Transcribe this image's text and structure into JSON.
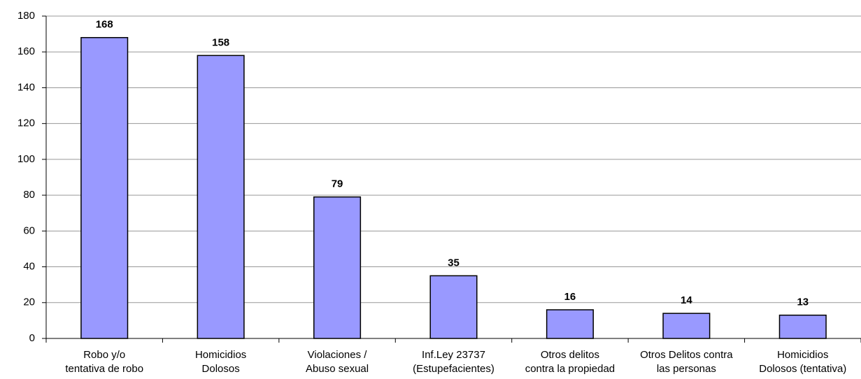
{
  "chart_data": {
    "type": "bar",
    "categories": [
      [
        "Robo y/o",
        "tentativa de robo"
      ],
      [
        "Homicidios",
        "Dolosos"
      ],
      [
        "Violaciones /",
        "Abuso sexual"
      ],
      [
        "Inf.Ley 23737",
        "(Estupefacientes)"
      ],
      [
        "Otros delitos",
        "contra la propiedad"
      ],
      [
        "Otros Delitos contra",
        "las personas"
      ],
      [
        "Homicidios",
        "Dolosos (tentativa)"
      ]
    ],
    "values": [
      168,
      158,
      79,
      35,
      16,
      14,
      13
    ],
    "color": "#9999ff",
    "ylim": [
      0,
      180
    ],
    "yticks": [
      0,
      20,
      40,
      60,
      80,
      100,
      120,
      140,
      160,
      180
    ],
    "grid": true
  }
}
